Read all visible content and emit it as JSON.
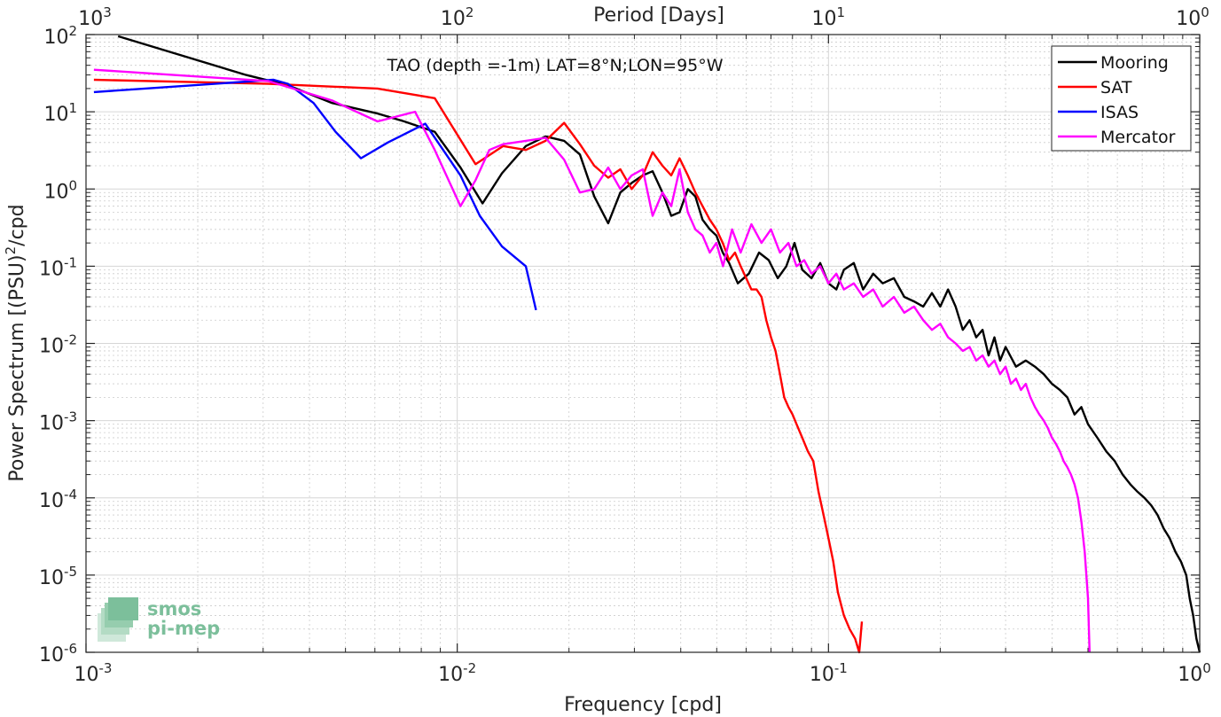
{
  "chart_data": {
    "type": "line",
    "title": "TAO (depth =-1m) LAT=8°N;LON=95°W",
    "xlabel": "Frequency [cpd]",
    "ylabel": "Power Spectrum [(PSU)",
    "ylabel_sup": "2",
    "ylabel_tail": "/cpd",
    "x2label": "Period [Days]",
    "x_scale": "log",
    "y_scale": "log",
    "xlim": [
      0.001,
      1
    ],
    "ylim": [
      1e-06,
      100
    ],
    "grid": true,
    "legend_position": "top-right",
    "x_ticks": [
      {
        "base": "10",
        "exp": "-3"
      },
      {
        "base": "10",
        "exp": "-2"
      },
      {
        "base": "10",
        "exp": "-1"
      },
      {
        "base": "10",
        "exp": "0"
      }
    ],
    "x2_ticks": [
      {
        "base": "10",
        "exp": "3"
      },
      {
        "base": "10",
        "exp": "2"
      },
      {
        "base": "10",
        "exp": "1"
      },
      {
        "base": "10",
        "exp": "0"
      }
    ],
    "y_ticks": [
      {
        "base": "10",
        "exp": "-6"
      },
      {
        "base": "10",
        "exp": "-5"
      },
      {
        "base": "10",
        "exp": "-4"
      },
      {
        "base": "10",
        "exp": "-3"
      },
      {
        "base": "10",
        "exp": "-2"
      },
      {
        "base": "10",
        "exp": "-1"
      },
      {
        "base": "10",
        "exp": "0"
      },
      {
        "base": "10",
        "exp": "1"
      },
      {
        "base": "10",
        "exp": "2"
      }
    ],
    "series": [
      {
        "name": "Mooring",
        "color": "#000000",
        "x": [
          0.00122,
          0.0027,
          0.0035,
          0.0046,
          0.0061,
          0.0072,
          0.0087,
          0.0102,
          0.0117,
          0.0132,
          0.0153,
          0.0173,
          0.0194,
          0.0214,
          0.0234,
          0.0255,
          0.0275,
          0.0295,
          0.0316,
          0.0336,
          0.0357,
          0.0377,
          0.0397,
          0.0418,
          0.0438,
          0.0458,
          0.0479,
          0.0499,
          0.0519,
          0.054,
          0.057,
          0.061,
          0.065,
          0.069,
          0.073,
          0.077,
          0.081,
          0.085,
          0.09,
          0.095,
          0.1,
          0.105,
          0.11,
          0.117,
          0.124,
          0.132,
          0.14,
          0.15,
          0.16,
          0.17,
          0.18,
          0.19,
          0.2,
          0.21,
          0.22,
          0.23,
          0.24,
          0.25,
          0.26,
          0.27,
          0.28,
          0.29,
          0.3,
          0.32,
          0.34,
          0.36,
          0.38,
          0.4,
          0.42,
          0.44,
          0.46,
          0.48,
          0.5,
          0.53,
          0.56,
          0.59,
          0.62,
          0.65,
          0.68,
          0.71,
          0.74,
          0.77,
          0.8,
          0.83,
          0.86,
          0.89,
          0.92,
          0.94,
          0.96,
          0.98,
          1.0
        ],
        "y": [
          95,
          30,
          22,
          13,
          9.5,
          7.5,
          5.5,
          1.9,
          0.65,
          1.6,
          3.6,
          4.8,
          4.2,
          2.8,
          0.8,
          0.36,
          0.9,
          1.2,
          1.5,
          1.7,
          0.9,
          0.45,
          0.5,
          1.0,
          0.8,
          0.4,
          0.3,
          0.25,
          0.15,
          0.11,
          0.06,
          0.08,
          0.15,
          0.12,
          0.07,
          0.1,
          0.2,
          0.09,
          0.07,
          0.11,
          0.06,
          0.05,
          0.09,
          0.11,
          0.05,
          0.08,
          0.06,
          0.07,
          0.04,
          0.035,
          0.03,
          0.045,
          0.03,
          0.05,
          0.03,
          0.015,
          0.02,
          0.012,
          0.015,
          0.007,
          0.012,
          0.006,
          0.009,
          0.005,
          0.006,
          0.005,
          0.004,
          0.003,
          0.0025,
          0.002,
          0.0012,
          0.0015,
          0.0009,
          0.0006,
          0.0004,
          0.0003,
          0.0002,
          0.00015,
          0.00012,
          0.0001,
          8e-05,
          6e-05,
          4e-05,
          3e-05,
          2e-05,
          1.5e-05,
          1e-05,
          5e-06,
          3e-06,
          1.5e-06,
          1e-06
        ]
      },
      {
        "name": "SAT",
        "color": "#ff0000",
        "x": [
          0.00105,
          0.0031,
          0.0061,
          0.0087,
          0.0112,
          0.0133,
          0.0153,
          0.0173,
          0.0194,
          0.0214,
          0.0234,
          0.0255,
          0.0275,
          0.0295,
          0.0316,
          0.0336,
          0.0357,
          0.0377,
          0.0397,
          0.0418,
          0.0438,
          0.0458,
          0.0479,
          0.0499,
          0.0519,
          0.054,
          0.056,
          0.058,
          0.06,
          0.062,
          0.064,
          0.066,
          0.068,
          0.07,
          0.072,
          0.074,
          0.076,
          0.078,
          0.08,
          0.082,
          0.085,
          0.088,
          0.091,
          0.094,
          0.097,
          0.1,
          0.103,
          0.106,
          0.11,
          0.114,
          0.118,
          0.121,
          0.123
        ],
        "y": [
          26,
          23,
          20,
          15,
          2.1,
          3.6,
          3.2,
          4.2,
          7.2,
          3.8,
          2.0,
          1.4,
          1.8,
          1.0,
          1.5,
          3.0,
          2.0,
          1.5,
          2.5,
          1.5,
          0.9,
          0.6,
          0.4,
          0.3,
          0.2,
          0.12,
          0.15,
          0.1,
          0.07,
          0.05,
          0.05,
          0.04,
          0.02,
          0.012,
          0.008,
          0.004,
          0.002,
          0.0015,
          0.0012,
          0.0009,
          0.0006,
          0.0004,
          0.0003,
          0.00012,
          6e-05,
          3e-05,
          1.5e-05,
          6e-06,
          3e-06,
          2e-06,
          1.5e-06,
          1e-06,
          2.5e-06
        ]
      },
      {
        "name": "ISAS",
        "color": "#0000ff",
        "x": [
          0.00105,
          0.0032,
          0.0035,
          0.0041,
          0.0047,
          0.0055,
          0.0065,
          0.0082,
          0.0102,
          0.0115,
          0.0132,
          0.0153,
          0.0163
        ],
        "y": [
          18,
          26,
          23,
          13,
          5.5,
          2.5,
          4.0,
          7.0,
          1.5,
          0.45,
          0.18,
          0.1,
          0.027
        ]
      },
      {
        "name": "Mercator",
        "color": "#ff00ff",
        "x": [
          0.00105,
          0.0031,
          0.0046,
          0.0061,
          0.0077,
          0.0087,
          0.0102,
          0.0112,
          0.0122,
          0.0133,
          0.0153,
          0.0173,
          0.0194,
          0.0214,
          0.0234,
          0.0255,
          0.0275,
          0.0295,
          0.0316,
          0.0336,
          0.0357,
          0.0377,
          0.0397,
          0.0418,
          0.0438,
          0.0458,
          0.0479,
          0.0499,
          0.052,
          0.055,
          0.058,
          0.062,
          0.066,
          0.07,
          0.074,
          0.078,
          0.082,
          0.086,
          0.09,
          0.095,
          0.1,
          0.105,
          0.11,
          0.117,
          0.124,
          0.132,
          0.14,
          0.15,
          0.16,
          0.17,
          0.18,
          0.19,
          0.2,
          0.21,
          0.22,
          0.23,
          0.24,
          0.25,
          0.26,
          0.27,
          0.28,
          0.29,
          0.3,
          0.31,
          0.32,
          0.33,
          0.34,
          0.35,
          0.36,
          0.37,
          0.38,
          0.39,
          0.4,
          0.41,
          0.42,
          0.43,
          0.44,
          0.45,
          0.46,
          0.47,
          0.48,
          0.49,
          0.5,
          0.505
        ],
        "y": [
          35,
          25,
          14,
          7.5,
          10,
          3.2,
          0.6,
          1.3,
          3.2,
          3.8,
          4.2,
          4.6,
          2.4,
          0.9,
          1.0,
          1.9,
          1.0,
          1.5,
          1.8,
          0.45,
          0.9,
          0.6,
          1.8,
          0.5,
          0.3,
          0.25,
          0.15,
          0.2,
          0.1,
          0.3,
          0.15,
          0.35,
          0.2,
          0.3,
          0.15,
          0.2,
          0.1,
          0.12,
          0.08,
          0.1,
          0.06,
          0.08,
          0.05,
          0.06,
          0.04,
          0.05,
          0.03,
          0.04,
          0.025,
          0.03,
          0.02,
          0.015,
          0.018,
          0.012,
          0.01,
          0.008,
          0.009,
          0.006,
          0.007,
          0.005,
          0.006,
          0.004,
          0.005,
          0.003,
          0.0035,
          0.0025,
          0.003,
          0.002,
          0.0015,
          0.0012,
          0.001,
          0.0008,
          0.0006,
          0.0005,
          0.0004,
          0.0003,
          0.00025,
          0.0002,
          0.00015,
          0.0001,
          5e-05,
          2e-05,
          5e-06,
          1e-06
        ]
      }
    ]
  },
  "logo": {
    "line1": "smos",
    "line2": "pi-mep"
  }
}
